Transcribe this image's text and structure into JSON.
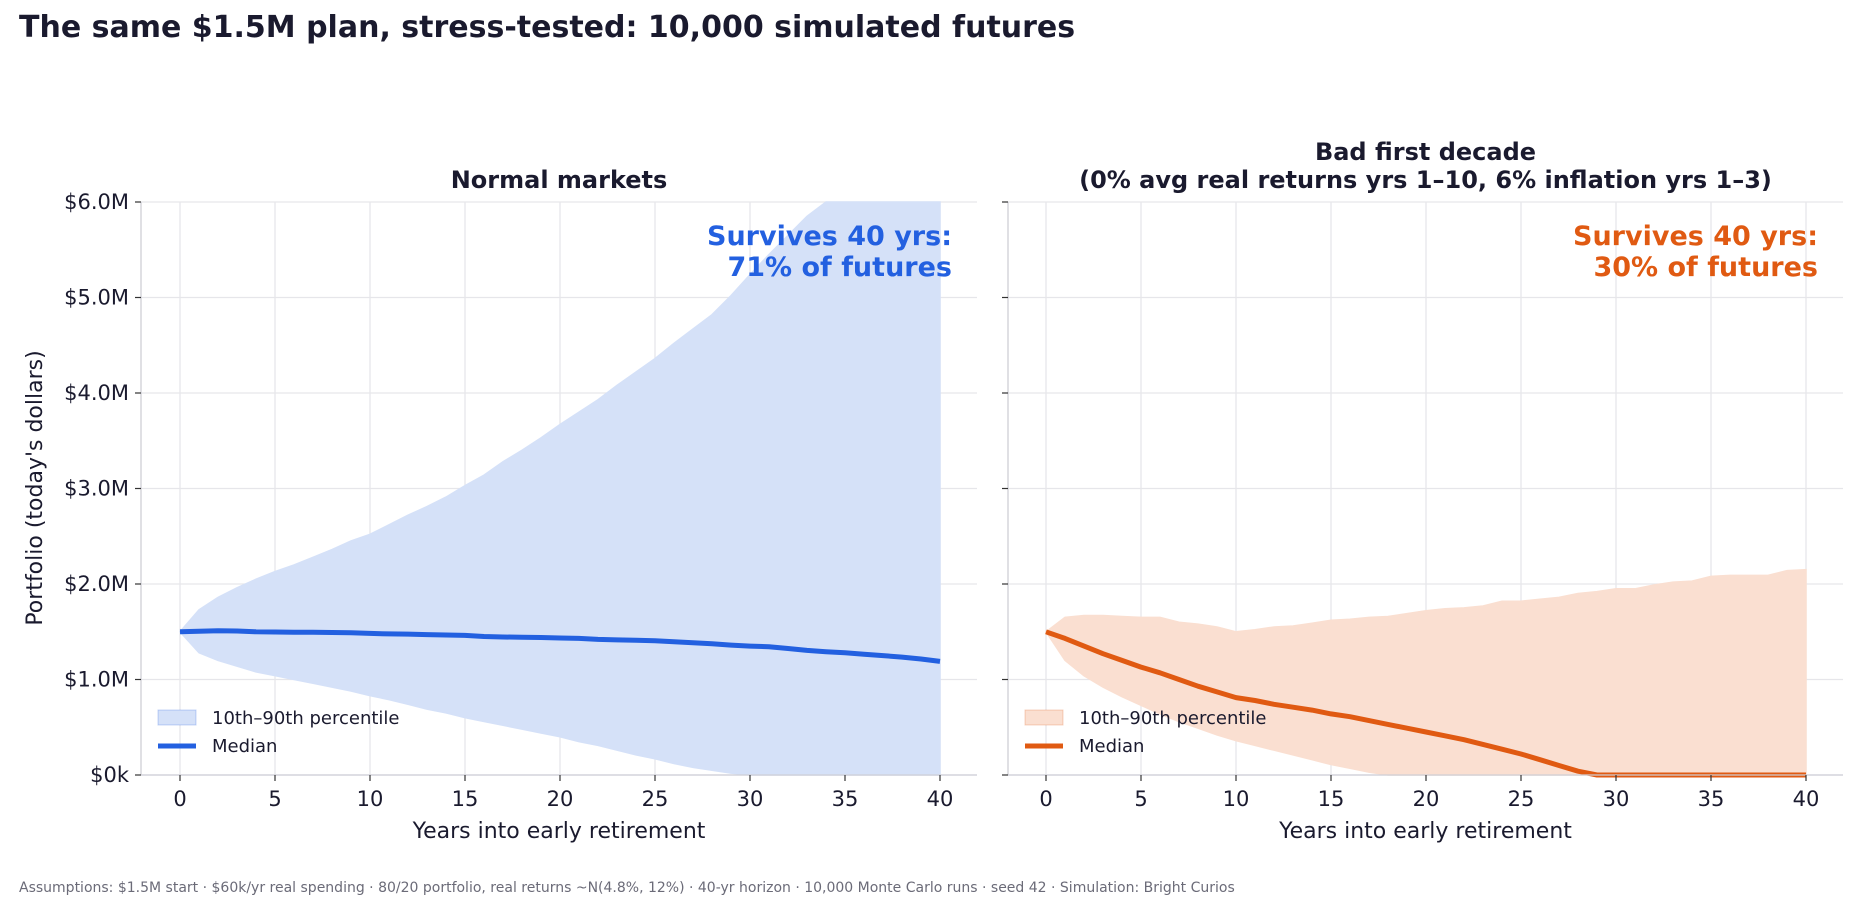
{
  "title": "The same $1.5M plan, stress-tested: 10,000 simulated futures",
  "footnote": "Assumptions: $1.5M start · $60k/yr real spending · 80/20 portfolio, real returns ~N(4.8%, 12%) · 40-yr horizon · 10,000 Monte Carlo runs · seed 42  ·  Simulation: Bright Curios",
  "colors": {
    "normal_line": "#2360e0",
    "normal_band": "#d5e1f8",
    "bad_line": "#e05a12",
    "bad_band": "#fadfd1",
    "grid": "#e6e6ea",
    "text": "#1a1a2e"
  },
  "chart_data": [
    {
      "type": "area",
      "title": "Normal markets",
      "xlabel": "Years into early retirement",
      "ylabel": "Portfolio (today's dollars)",
      "xlim": [
        0,
        40
      ],
      "ylim": [
        0,
        6.0
      ],
      "x_ticks": [
        "0",
        "5",
        "10",
        "15",
        "20",
        "25",
        "30",
        "35",
        "40"
      ],
      "y_ticks": [
        "$0k",
        "$1.0M",
        "$2.0M",
        "$3.0M",
        "$4.0M",
        "$5.0M",
        "$6.0M"
      ],
      "grid": true,
      "legend_position": "lower-left",
      "annotation": "Survives 40 yrs:\n71% of futures",
      "x": [
        0,
        1,
        2,
        3,
        4,
        5,
        6,
        7,
        8,
        9,
        10,
        11,
        12,
        13,
        14,
        15,
        16,
        17,
        18,
        19,
        20,
        21,
        22,
        23,
        24,
        25,
        26,
        27,
        28,
        29,
        30,
        31,
        32,
        33,
        34,
        35,
        36,
        37,
        38,
        39,
        40
      ],
      "series": [
        {
          "name": "10th–90th percentile",
          "kind": "band",
          "lower": [
            1.5,
            1.28,
            1.2,
            1.14,
            1.08,
            1.04,
            1.0,
            0.96,
            0.92,
            0.88,
            0.83,
            0.79,
            0.74,
            0.69,
            0.65,
            0.6,
            0.56,
            0.52,
            0.48,
            0.44,
            0.4,
            0.35,
            0.31,
            0.26,
            0.21,
            0.17,
            0.12,
            0.08,
            0.05,
            0.02,
            0.0,
            0.0,
            0.0,
            0.0,
            0.0,
            0.0,
            0.0,
            0.0,
            0.0,
            0.0,
            0.0
          ],
          "upper": [
            1.5,
            1.73,
            1.86,
            1.96,
            2.05,
            2.13,
            2.2,
            2.28,
            2.36,
            2.45,
            2.52,
            2.62,
            2.72,
            2.81,
            2.91,
            3.03,
            3.14,
            3.28,
            3.4,
            3.53,
            3.67,
            3.8,
            3.93,
            4.08,
            4.22,
            4.36,
            4.52,
            4.67,
            4.82,
            5.02,
            5.24,
            5.45,
            5.65,
            5.85,
            6.0,
            6.0,
            6.0,
            6.0,
            6.0,
            6.0,
            6.0
          ]
        },
        {
          "name": "Median",
          "kind": "line",
          "values": [
            1.5,
            1.505,
            1.51,
            1.508,
            1.5,
            1.497,
            1.495,
            1.494,
            1.492,
            1.49,
            1.483,
            1.478,
            1.475,
            1.47,
            1.466,
            1.462,
            1.45,
            1.445,
            1.443,
            1.44,
            1.435,
            1.43,
            1.42,
            1.415,
            1.41,
            1.405,
            1.395,
            1.385,
            1.375,
            1.36,
            1.35,
            1.343,
            1.325,
            1.305,
            1.29,
            1.28,
            1.265,
            1.25,
            1.235,
            1.215,
            1.19
          ]
        }
      ]
    },
    {
      "type": "area",
      "title": "Bad first decade\n(0% avg real returns yrs 1–10, 6% inflation yrs 1–3)",
      "xlabel": "Years into early retirement",
      "xlim": [
        0,
        40
      ],
      "ylim": [
        0,
        6.0
      ],
      "x_ticks": [
        "0",
        "5",
        "10",
        "15",
        "20",
        "25",
        "30",
        "35",
        "40"
      ],
      "grid": true,
      "legend_position": "lower-left",
      "annotation": "Survives 40 yrs:\n30% of futures",
      "x": [
        0,
        1,
        2,
        3,
        4,
        5,
        6,
        7,
        8,
        9,
        10,
        11,
        12,
        13,
        14,
        15,
        16,
        17,
        18,
        19,
        20,
        21,
        22,
        23,
        24,
        25,
        26,
        27,
        28,
        29,
        30,
        31,
        32,
        33,
        34,
        35,
        36,
        37,
        38,
        39,
        40
      ],
      "series": [
        {
          "name": "10th–90th percentile",
          "kind": "band",
          "lower": [
            1.5,
            1.2,
            1.04,
            0.92,
            0.82,
            0.73,
            0.64,
            0.56,
            0.49,
            0.42,
            0.36,
            0.31,
            0.26,
            0.21,
            0.16,
            0.11,
            0.07,
            0.03,
            0.0,
            0.0,
            0.0,
            0.0,
            0.0,
            0.0,
            0.0,
            0.0,
            0.0,
            0.0,
            0.0,
            0.0,
            0.0,
            0.0,
            0.0,
            0.0,
            0.0,
            0.0,
            0.0,
            0.0,
            0.0,
            0.0,
            0.0
          ],
          "upper": [
            1.5,
            1.65,
            1.67,
            1.67,
            1.66,
            1.65,
            1.65,
            1.6,
            1.58,
            1.55,
            1.5,
            1.52,
            1.55,
            1.56,
            1.59,
            1.62,
            1.63,
            1.65,
            1.66,
            1.69,
            1.72,
            1.74,
            1.75,
            1.77,
            1.82,
            1.82,
            1.84,
            1.86,
            1.9,
            1.92,
            1.95,
            1.95,
            1.99,
            2.02,
            2.03,
            2.08,
            2.09,
            2.09,
            2.09,
            2.14,
            2.15
          ]
        },
        {
          "name": "Median",
          "kind": "line",
          "values": [
            1.5,
            1.43,
            1.35,
            1.27,
            1.2,
            1.13,
            1.07,
            1.0,
            0.93,
            0.87,
            0.81,
            0.78,
            0.74,
            0.71,
            0.68,
            0.64,
            0.61,
            0.57,
            0.53,
            0.49,
            0.45,
            0.41,
            0.37,
            0.32,
            0.27,
            0.22,
            0.16,
            0.1,
            0.04,
            0.0,
            0.0,
            0.0,
            0.0,
            0.0,
            0.0,
            0.0,
            0.0,
            0.0,
            0.0,
            0.0,
            0.0
          ]
        }
      ]
    }
  ]
}
